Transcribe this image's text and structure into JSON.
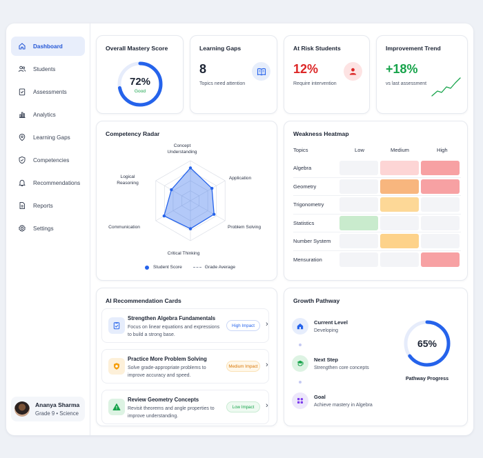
{
  "sidebar": {
    "items": [
      {
        "label": "Dashboard",
        "icon": "home-icon",
        "active": true
      },
      {
        "label": "Students",
        "icon": "users-icon"
      },
      {
        "label": "Assessments",
        "icon": "clipboard-icon"
      },
      {
        "label": "Analytics",
        "icon": "bar-chart-icon"
      },
      {
        "label": "Learning Gaps",
        "icon": "target-icon"
      },
      {
        "label": "Competencies",
        "icon": "shield-icon"
      },
      {
        "label": "Recommendations",
        "icon": "bell-icon"
      },
      {
        "label": "Reports",
        "icon": "document-icon"
      },
      {
        "label": "Settings",
        "icon": "gear-icon"
      }
    ],
    "profile": {
      "name": "Ananya Sharma",
      "subtitle": "Grade 9 • Science"
    }
  },
  "kpis": {
    "mastery": {
      "title": "Overall Mastery Score",
      "value": "72%",
      "status": "Good",
      "progress": 0.72,
      "color": "#2563eb"
    },
    "gaps": {
      "title": "Learning Gaps",
      "value": "8",
      "subtitle": "Topics need attention",
      "icon": "book-icon"
    },
    "risk": {
      "title": "At Risk Students",
      "value": "12%",
      "subtitle": "Require intervention",
      "icon": "user-alert-icon",
      "color": "#dc2626"
    },
    "trend": {
      "title": "Improvement Trend",
      "value": "+18%",
      "subtitle": "vs last assessment",
      "color": "#16a34a"
    }
  },
  "radar": {
    "title": "Competency Radar",
    "axes": [
      "Concept Understanding",
      "Application",
      "Problem Solving",
      "Critical Thinking",
      "Communication",
      "Logical Reasoning"
    ],
    "student_scores": [
      0.82,
      0.62,
      0.68,
      0.7,
      0.76,
      0.55
    ],
    "legend": {
      "student": "Student Score",
      "average": "Grade Average"
    }
  },
  "heatmap": {
    "title": "Weakness Heatmap",
    "header": {
      "topics": "Topics",
      "low": "Low",
      "medium": "Medium",
      "high": "High"
    },
    "rows": [
      {
        "topic": "Algebra",
        "cells": [
          "#f3f4f7",
          "#fdd5d5",
          "#f7a1a3"
        ]
      },
      {
        "topic": "Geometry",
        "cells": [
          "#f3f4f7",
          "#f8b67e",
          "#f7a1a3"
        ]
      },
      {
        "topic": "Trigonometry",
        "cells": [
          "#f3f4f7",
          "#fdd897",
          "#f3f4f7"
        ]
      },
      {
        "topic": "Statistics",
        "cells": [
          "#c9ebcd",
          "#f3f4f7",
          "#f3f4f7"
        ]
      },
      {
        "topic": "Number System",
        "cells": [
          "#f3f4f7",
          "#fdd28a",
          "#f3f4f7"
        ]
      },
      {
        "topic": "Mensuration",
        "cells": [
          "#f3f4f7",
          "#f3f4f7",
          "#f7a1a3"
        ]
      }
    ]
  },
  "recommendations": {
    "title": "AI Recommendation Cards",
    "cards": [
      {
        "title": "Strengthen Algebra Fundamentals",
        "desc": "Focus on linear equations and expressions to build a strong base.",
        "badge": "High Impact",
        "icon": "clipboard-check-icon"
      },
      {
        "title": "Practice More Problem Solving",
        "desc": "Solve grade-appropriate problems to improve accuracy and speed.",
        "badge": "Medium Impact",
        "icon": "shield-alert-icon"
      },
      {
        "title": "Review Geometry Concepts",
        "desc": "Revisit theorems and angle properties to improve understanding.",
        "badge": "Low Impact",
        "icon": "warning-icon"
      }
    ]
  },
  "growth": {
    "title": "Growth Pathway",
    "steps": [
      {
        "title": "Current Level",
        "subtitle": "Developing",
        "icon": "home-icon"
      },
      {
        "title": "Next Step",
        "subtitle": "Strengthen core concepts",
        "icon": "mortarboard-icon"
      },
      {
        "title": "Goal",
        "subtitle": "Achieve mastery in Algebra",
        "icon": "award-icon"
      }
    ],
    "progress_value": "65%",
    "progress": 0.65,
    "progress_label": "Pathway Progress"
  }
}
